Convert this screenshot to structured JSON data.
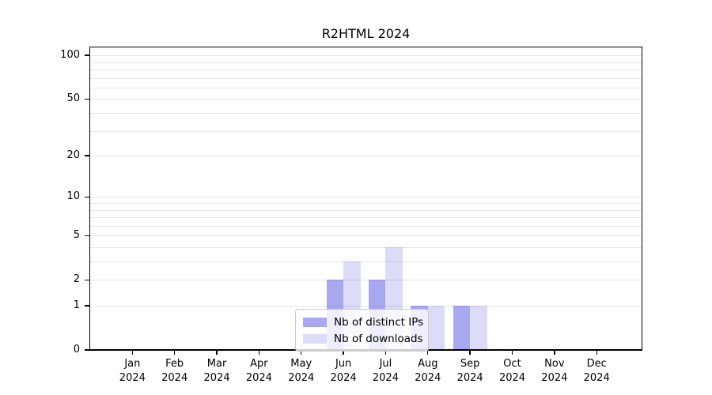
{
  "chart_data": {
    "type": "bar",
    "title": "R2HTML 2024",
    "categories": [
      "Jan",
      "Feb",
      "Mar",
      "Apr",
      "May",
      "Jun",
      "Jul",
      "Aug",
      "Sep",
      "Oct",
      "Nov",
      "Dec"
    ],
    "category_year": "2024",
    "series": [
      {
        "name": "Nb of distinct IPs",
        "color": "#a8a8f0",
        "values": [
          0,
          0,
          0,
          0,
          0,
          2,
          2,
          1,
          1,
          0,
          0,
          0
        ]
      },
      {
        "name": "Nb of downloads",
        "color": "#dcdcf8",
        "values": [
          0,
          0,
          0,
          0,
          0,
          3,
          4,
          1,
          1,
          0,
          0,
          0
        ]
      }
    ],
    "xlabel": "",
    "ylabel": "",
    "y_scale": "log1p",
    "ylim": [
      0,
      113
    ],
    "y_tick_values": [
      0,
      1,
      2,
      5,
      10,
      20,
      50,
      100
    ],
    "y_grid_values": [
      1,
      2,
      3,
      4,
      5,
      6,
      7,
      8,
      9,
      10,
      20,
      30,
      40,
      50,
      60,
      70,
      80,
      90,
      100
    ],
    "grid": true,
    "legend_position": "bottom-center"
  }
}
